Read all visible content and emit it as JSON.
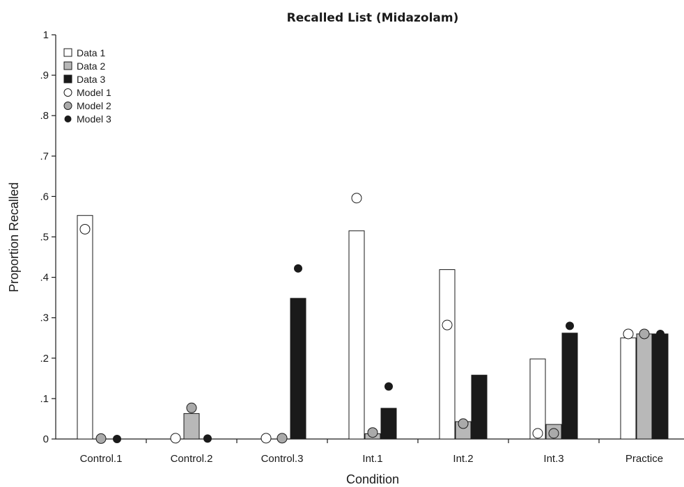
{
  "chart_data": {
    "type": "bar",
    "title": "Recalled List (Midazolam)",
    "xlabel": "Condition",
    "ylabel": "Proportion Recalled",
    "ylim": [
      0,
      1
    ],
    "yticks": [
      0,
      0.1,
      0.2,
      0.3,
      0.4,
      0.5,
      0.6,
      0.7,
      0.8,
      0.9,
      1
    ],
    "ytick_labels": [
      "0",
      ".1",
      ".2",
      ".3",
      ".4",
      ".5",
      ".6",
      ".7",
      ".8",
      ".9",
      "1"
    ],
    "categories": [
      "Control.1",
      "Control.2",
      "Control.3",
      "Int.1",
      "Int.2",
      "Int.3",
      "Practice"
    ],
    "grid": false,
    "legend_position": "top-left",
    "bar_series": [
      {
        "name": "Data 1",
        "color": "#ffffff",
        "values": [
          0.553,
          0,
          0,
          0.515,
          0.419,
          0.198,
          0.25
        ]
      },
      {
        "name": "Data 2",
        "color": "#b8b8b8",
        "values": [
          0,
          0.063,
          0,
          0.013,
          0.043,
          0.036,
          0.26
        ]
      },
      {
        "name": "Data 3",
        "color": "#1a1a1a",
        "values": [
          0,
          0,
          0.348,
          0.076,
          0.158,
          0.262,
          0.26
        ]
      }
    ],
    "point_series": [
      {
        "name": "Model 1",
        "color": "#ffffff",
        "values": [
          0.519,
          0.002,
          0.002,
          0.596,
          0.282,
          0.014,
          0.26
        ]
      },
      {
        "name": "Model 2",
        "color": "#aaaaaa",
        "values": [
          0.001,
          0.077,
          0.002,
          0.016,
          0.038,
          0.014,
          0.26
        ]
      },
      {
        "name": "Model 3",
        "color": "#1a1a1a",
        "values": [
          0,
          0.001,
          0.422,
          0.13,
          0.123,
          0.28,
          0.26
        ]
      }
    ]
  }
}
